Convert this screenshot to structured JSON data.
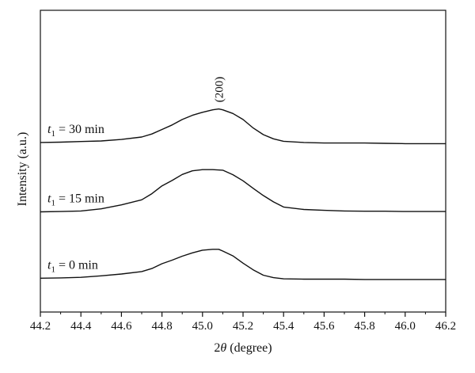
{
  "chart_data": {
    "type": "line",
    "title": "",
    "xlabel": "2θ (degree)",
    "ylabel": "Intensity (a.u.)",
    "xlim": [
      44.2,
      46.2
    ],
    "ylim": [
      0,
      10
    ],
    "xticks": [
      "44.2",
      "44.4",
      "44.6",
      "44.8",
      "45.0",
      "45.2",
      "45.4",
      "45.6",
      "45.8",
      "46.0",
      "46.2"
    ],
    "yticks_shown": false,
    "grid": false,
    "legend": "none",
    "series": [
      {
        "label_var": "t",
        "label_sub": "1",
        "label_rest": " = 30 min",
        "x": [
          44.2,
          44.3,
          44.4,
          44.5,
          44.6,
          44.7,
          44.75,
          44.8,
          44.85,
          44.9,
          44.95,
          45.0,
          45.05,
          45.08,
          45.1,
          45.15,
          45.2,
          45.25,
          45.3,
          45.35,
          45.4,
          45.5,
          45.6,
          45.7,
          45.8,
          45.9,
          46.0,
          46.1,
          46.2
        ],
        "y": [
          5.62,
          5.63,
          5.65,
          5.67,
          5.72,
          5.8,
          5.9,
          6.05,
          6.2,
          6.38,
          6.52,
          6.62,
          6.7,
          6.73,
          6.7,
          6.58,
          6.38,
          6.1,
          5.88,
          5.74,
          5.66,
          5.62,
          5.6,
          5.6,
          5.6,
          5.59,
          5.58,
          5.58,
          5.58
        ]
      },
      {
        "label_var": "t",
        "label_sub": "1",
        "label_rest": " = 15 min",
        "x": [
          44.2,
          44.3,
          44.4,
          44.5,
          44.6,
          44.7,
          44.75,
          44.8,
          44.85,
          44.9,
          44.95,
          45.0,
          45.05,
          45.1,
          45.15,
          45.2,
          45.25,
          45.3,
          45.35,
          45.4,
          45.5,
          45.6,
          45.7,
          45.8,
          45.9,
          46.0,
          46.1,
          46.2
        ],
        "y": [
          3.32,
          3.33,
          3.35,
          3.42,
          3.55,
          3.72,
          3.92,
          4.18,
          4.36,
          4.56,
          4.68,
          4.72,
          4.72,
          4.7,
          4.55,
          4.35,
          4.1,
          3.86,
          3.65,
          3.48,
          3.4,
          3.37,
          3.35,
          3.34,
          3.34,
          3.33,
          3.33,
          3.33
        ]
      },
      {
        "label_var": "t",
        "label_sub": "1",
        "label_rest": " = 0 min",
        "x": [
          44.2,
          44.3,
          44.4,
          44.5,
          44.6,
          44.7,
          44.75,
          44.8,
          44.85,
          44.9,
          44.95,
          45.0,
          45.05,
          45.08,
          45.1,
          45.15,
          45.2,
          45.25,
          45.3,
          45.35,
          45.4,
          45.5,
          45.6,
          45.7,
          45.8,
          45.9,
          46.0,
          46.1,
          46.2
        ],
        "y": [
          1.12,
          1.13,
          1.15,
          1.2,
          1.26,
          1.34,
          1.44,
          1.6,
          1.72,
          1.85,
          1.96,
          2.05,
          2.08,
          2.08,
          2.02,
          1.86,
          1.62,
          1.4,
          1.22,
          1.14,
          1.1,
          1.09,
          1.09,
          1.09,
          1.08,
          1.08,
          1.08,
          1.08,
          1.08
        ]
      }
    ],
    "annotations": [
      {
        "text": "(200)",
        "x": 45.08,
        "y": 6.95,
        "rotation": -90
      }
    ]
  }
}
